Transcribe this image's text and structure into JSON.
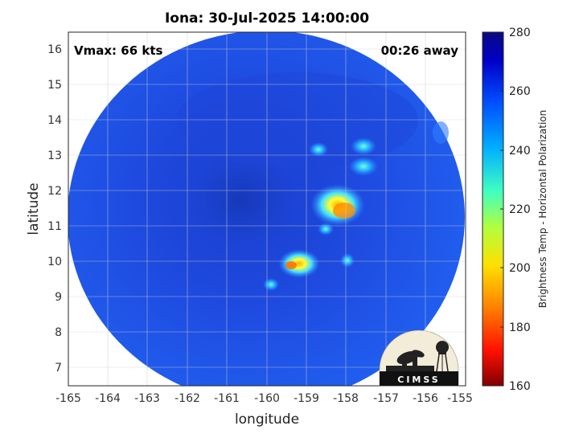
{
  "title": "Iona: 30-Jul-2025 14:00:00",
  "overlay": {
    "vmax": "Vmax: 66 kts",
    "time_away": "00:26 away"
  },
  "axes": {
    "xlabel": "longitude",
    "ylabel": "latitude",
    "x_ticks": [
      "-165",
      "-164",
      "-163",
      "-162",
      "-161",
      "-160",
      "-159",
      "-158",
      "-157",
      "-156",
      "-155"
    ],
    "y_ticks": [
      "16",
      "15",
      "14",
      "13",
      "12",
      "11",
      "10",
      "9",
      "8",
      "7"
    ]
  },
  "colorbar": {
    "title": "Brightness Temp - Horizontal Polarization",
    "ticks": [
      "280",
      "260",
      "240",
      "220",
      "200",
      "180",
      "160"
    ],
    "range": [
      160,
      280
    ]
  },
  "logo_text": "CIMSS",
  "colors": {
    "background_scene": "#1f4be0",
    "storm_core": "#ffdd00"
  }
}
